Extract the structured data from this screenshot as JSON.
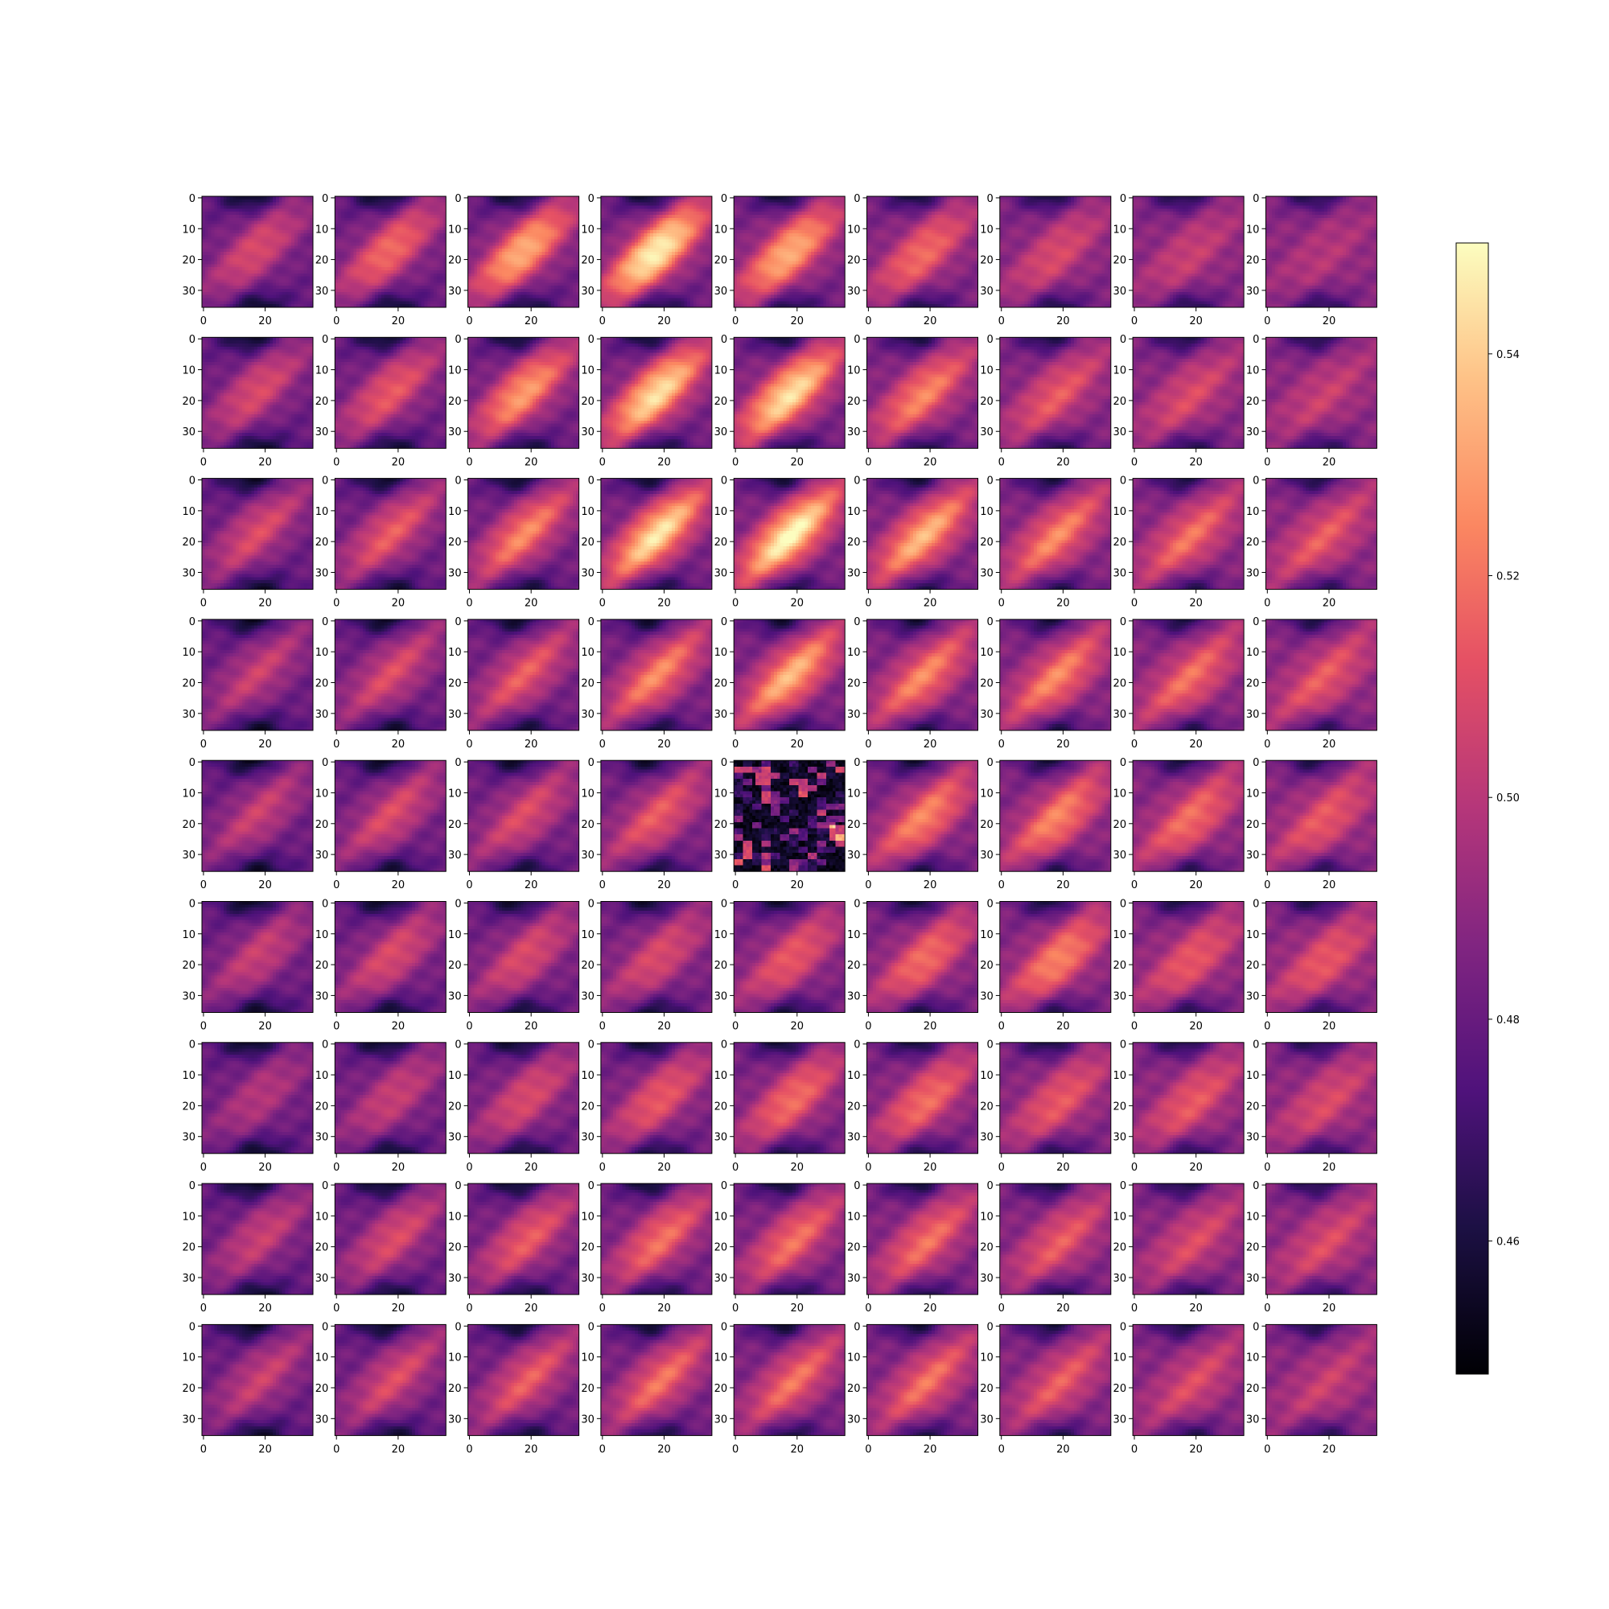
{
  "chart_data": {
    "type": "heatmap",
    "layout": "grid of 9 rows x 9 columns of small image panels with a shared colorbar",
    "rows": 9,
    "cols": 9,
    "panel_image_size": [
      36,
      36
    ],
    "colormap": "magma",
    "grid": false,
    "panel_xticks": [
      "0",
      "20"
    ],
    "panel_yticks": [
      "0",
      "10",
      "20",
      "30"
    ],
    "colorbar": {
      "placement": "right",
      "range": [
        0.448,
        0.55
      ],
      "ticks": [
        "0.46",
        "0.48",
        "0.50",
        "0.52",
        "0.54"
      ]
    },
    "panel_notes": "Each panel shows a diagonal bright band (values ~0.50-0.54) running from lower-left to upper-right, with dark lobes (~0.46) near the top and bottom edges. Brightest panels are in rows 1-3, columns 4-5. The panel at row 5, column 5 is a noisy, mostly dark (~0.45) pattern."
  }
}
